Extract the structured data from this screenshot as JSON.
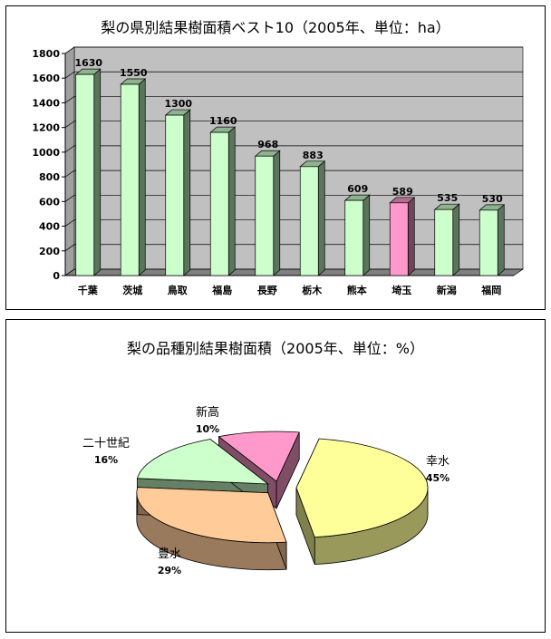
{
  "chart_data": [
    {
      "type": "bar",
      "title": "梨の県別結果樹面積ベスト10（2005年、単位：ha）",
      "categories": [
        "千葉",
        "茨城",
        "鳥取",
        "福島",
        "長野",
        "栃木",
        "熊本",
        "埼玉",
        "新潟",
        "福岡"
      ],
      "values": [
        1630,
        1550,
        1300,
        1160,
        968,
        883,
        609,
        589,
        535,
        530
      ],
      "ylim": [
        0,
        1800
      ],
      "yticks": [
        0,
        200,
        400,
        600,
        800,
        1000,
        1200,
        1400,
        1600,
        1800
      ],
      "grid": true,
      "colors": {
        "default": "#ccffcc",
        "highlight": "#ff99cc",
        "highlight_index": 7,
        "wall": "#c0c0c0"
      }
    },
    {
      "type": "pie",
      "title": "梨の品種別結果樹面積（2005年、単位：%）",
      "slices": [
        {
          "name": "幸水",
          "value": 45,
          "pct": "45%",
          "color": "#ffff99"
        },
        {
          "name": "豊水",
          "value": 29,
          "pct": "29%",
          "color": "#ffcc99"
        },
        {
          "name": "二十世紀",
          "value": 16,
          "pct": "16%",
          "color": "#ccffcc"
        },
        {
          "name": "新高",
          "value": 10,
          "pct": "10%",
          "color": "#ff99cc"
        }
      ]
    }
  ]
}
